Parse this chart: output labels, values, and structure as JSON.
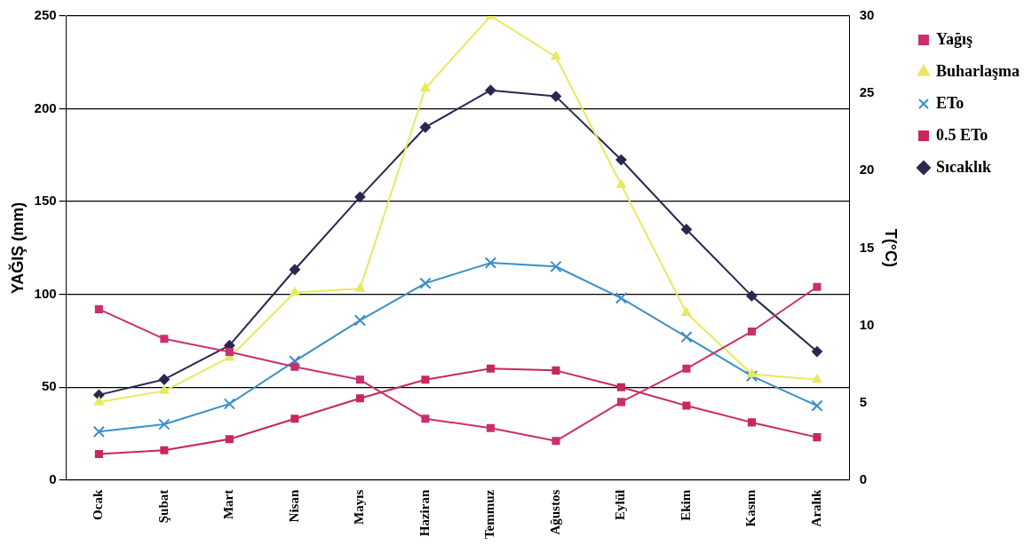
{
  "chart_data": {
    "type": "line",
    "categories": [
      "Ocak",
      "Şubat",
      "Mart",
      "Nisan",
      "Mayıs",
      "Haziran",
      "Temmuz",
      "Ağustos",
      "Eylül",
      "Ekim",
      "Kasım",
      "Aralık"
    ],
    "series": [
      {
        "name": "Yağış",
        "color": "#c8306e",
        "marker": "square",
        "values": [
          92,
          76,
          69,
          61,
          54,
          33,
          28,
          21,
          42,
          60,
          80,
          104
        ]
      },
      {
        "name": "Buharlaşma",
        "color": "#e8e860",
        "marker": "triangle",
        "values": [
          42,
          48,
          66,
          101,
          103,
          211,
          250,
          228,
          159,
          90,
          57,
          54
        ]
      },
      {
        "name": "ETo",
        "color": "#3a8fc8",
        "marker": "cross",
        "values": [
          26,
          30,
          41,
          64,
          86,
          106,
          117,
          115,
          98,
          77,
          56,
          40
        ]
      },
      {
        "name": "0.5 ETo",
        "color": "#c8285a",
        "marker": "square",
        "values": [
          14,
          16,
          22,
          33,
          44,
          54,
          60,
          59,
          50,
          40,
          31,
          23
        ]
      },
      {
        "name": "Sıcaklık",
        "color": "#2a2850",
        "marker": "diamond",
        "axis": "y2",
        "values": [
          5.5,
          6.5,
          8.7,
          13.6,
          18.3,
          22.8,
          25.2,
          24.8,
          20.7,
          16.2,
          11.9,
          8.3
        ]
      }
    ],
    "ylabel": "YAĞIŞ (mm)",
    "y2label": "T(°C)",
    "ylim": [
      0,
      250
    ],
    "yticks": [
      0,
      50,
      100,
      150,
      200,
      250
    ],
    "y2lim": [
      0,
      30
    ],
    "y2ticks": [
      0,
      5,
      10,
      15,
      20,
      25,
      30
    ],
    "grid": "y",
    "legend": "top right"
  }
}
